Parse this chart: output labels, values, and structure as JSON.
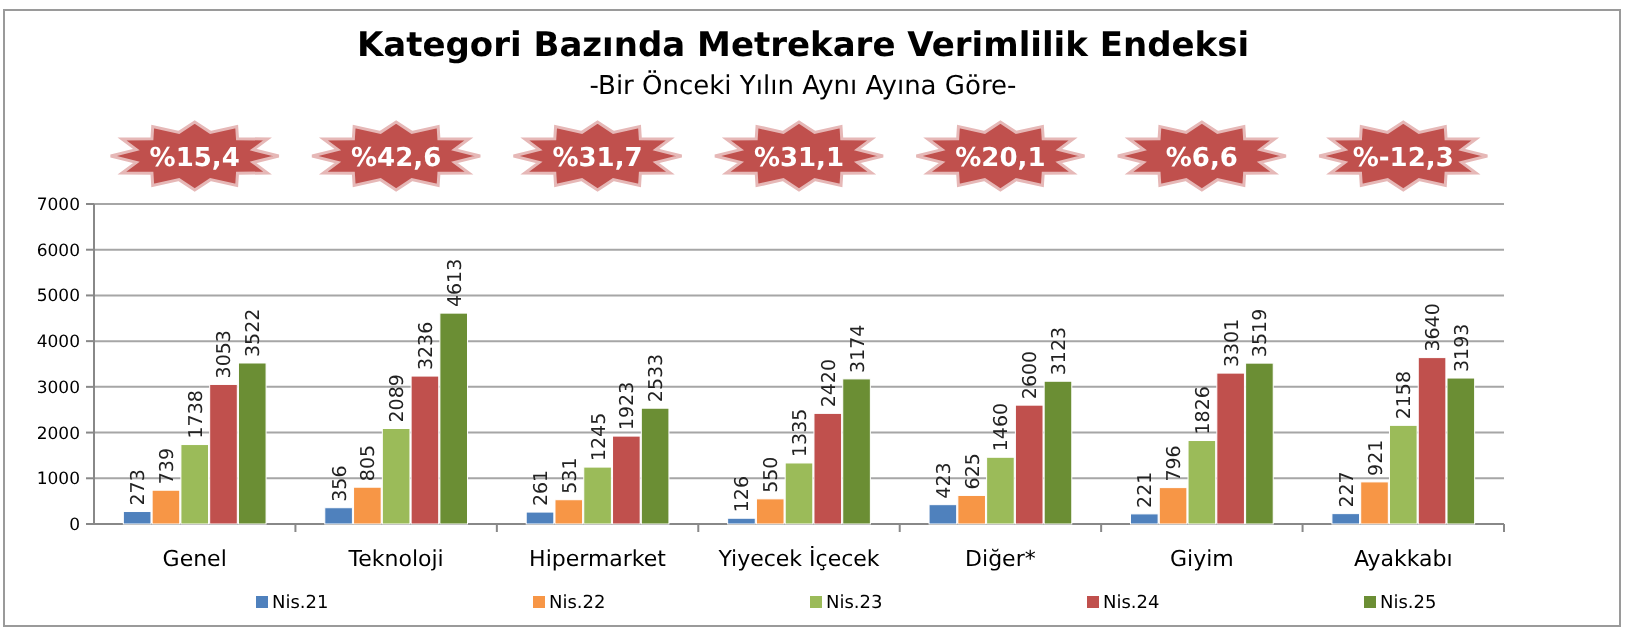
{
  "chart_data": {
    "type": "bar",
    "title": "Kategori Bazında Metrekare Verimlilik Endeksi",
    "subtitle": "-Bir Önceki Yılın Aynı Ayına Göre-",
    "categories": [
      "Genel",
      "Teknoloji",
      "Hipermarket",
      "Yiyecek İçecek",
      "Diğer*",
      "Giyim",
      "Ayakkabı"
    ],
    "series": [
      {
        "name": "Nis.21",
        "color": "#4f81bd",
        "values": [
          273,
          356,
          261,
          126,
          423,
          221,
          227
        ]
      },
      {
        "name": "Nis.22",
        "color": "#f79646",
        "values": [
          739,
          805,
          531,
          550,
          625,
          796,
          921
        ]
      },
      {
        "name": "Nis.23",
        "color": "#9bbb59",
        "values": [
          1738,
          2089,
          1245,
          1335,
          1460,
          1826,
          2158
        ]
      },
      {
        "name": "Nis.24",
        "color": "#c0504d",
        "values": [
          3053,
          3236,
          1923,
          2420,
          2600,
          3301,
          3640
        ]
      },
      {
        "name": "Nis.25",
        "color": "#6b8e34",
        "values": [
          3522,
          4613,
          2533,
          3174,
          3123,
          3519,
          3193
        ]
      }
    ],
    "ylim": [
      0,
      7000
    ],
    "yticks": [
      0,
      1000,
      2000,
      3000,
      4000,
      5000,
      6000,
      7000
    ],
    "grid": "y",
    "legend": "bottom",
    "data_labels": true,
    "annotations": [
      "%15,4",
      "%42,6",
      "%31,7",
      "%31,1",
      "%20,1",
      "%6,6",
      "%-12,3"
    ]
  }
}
